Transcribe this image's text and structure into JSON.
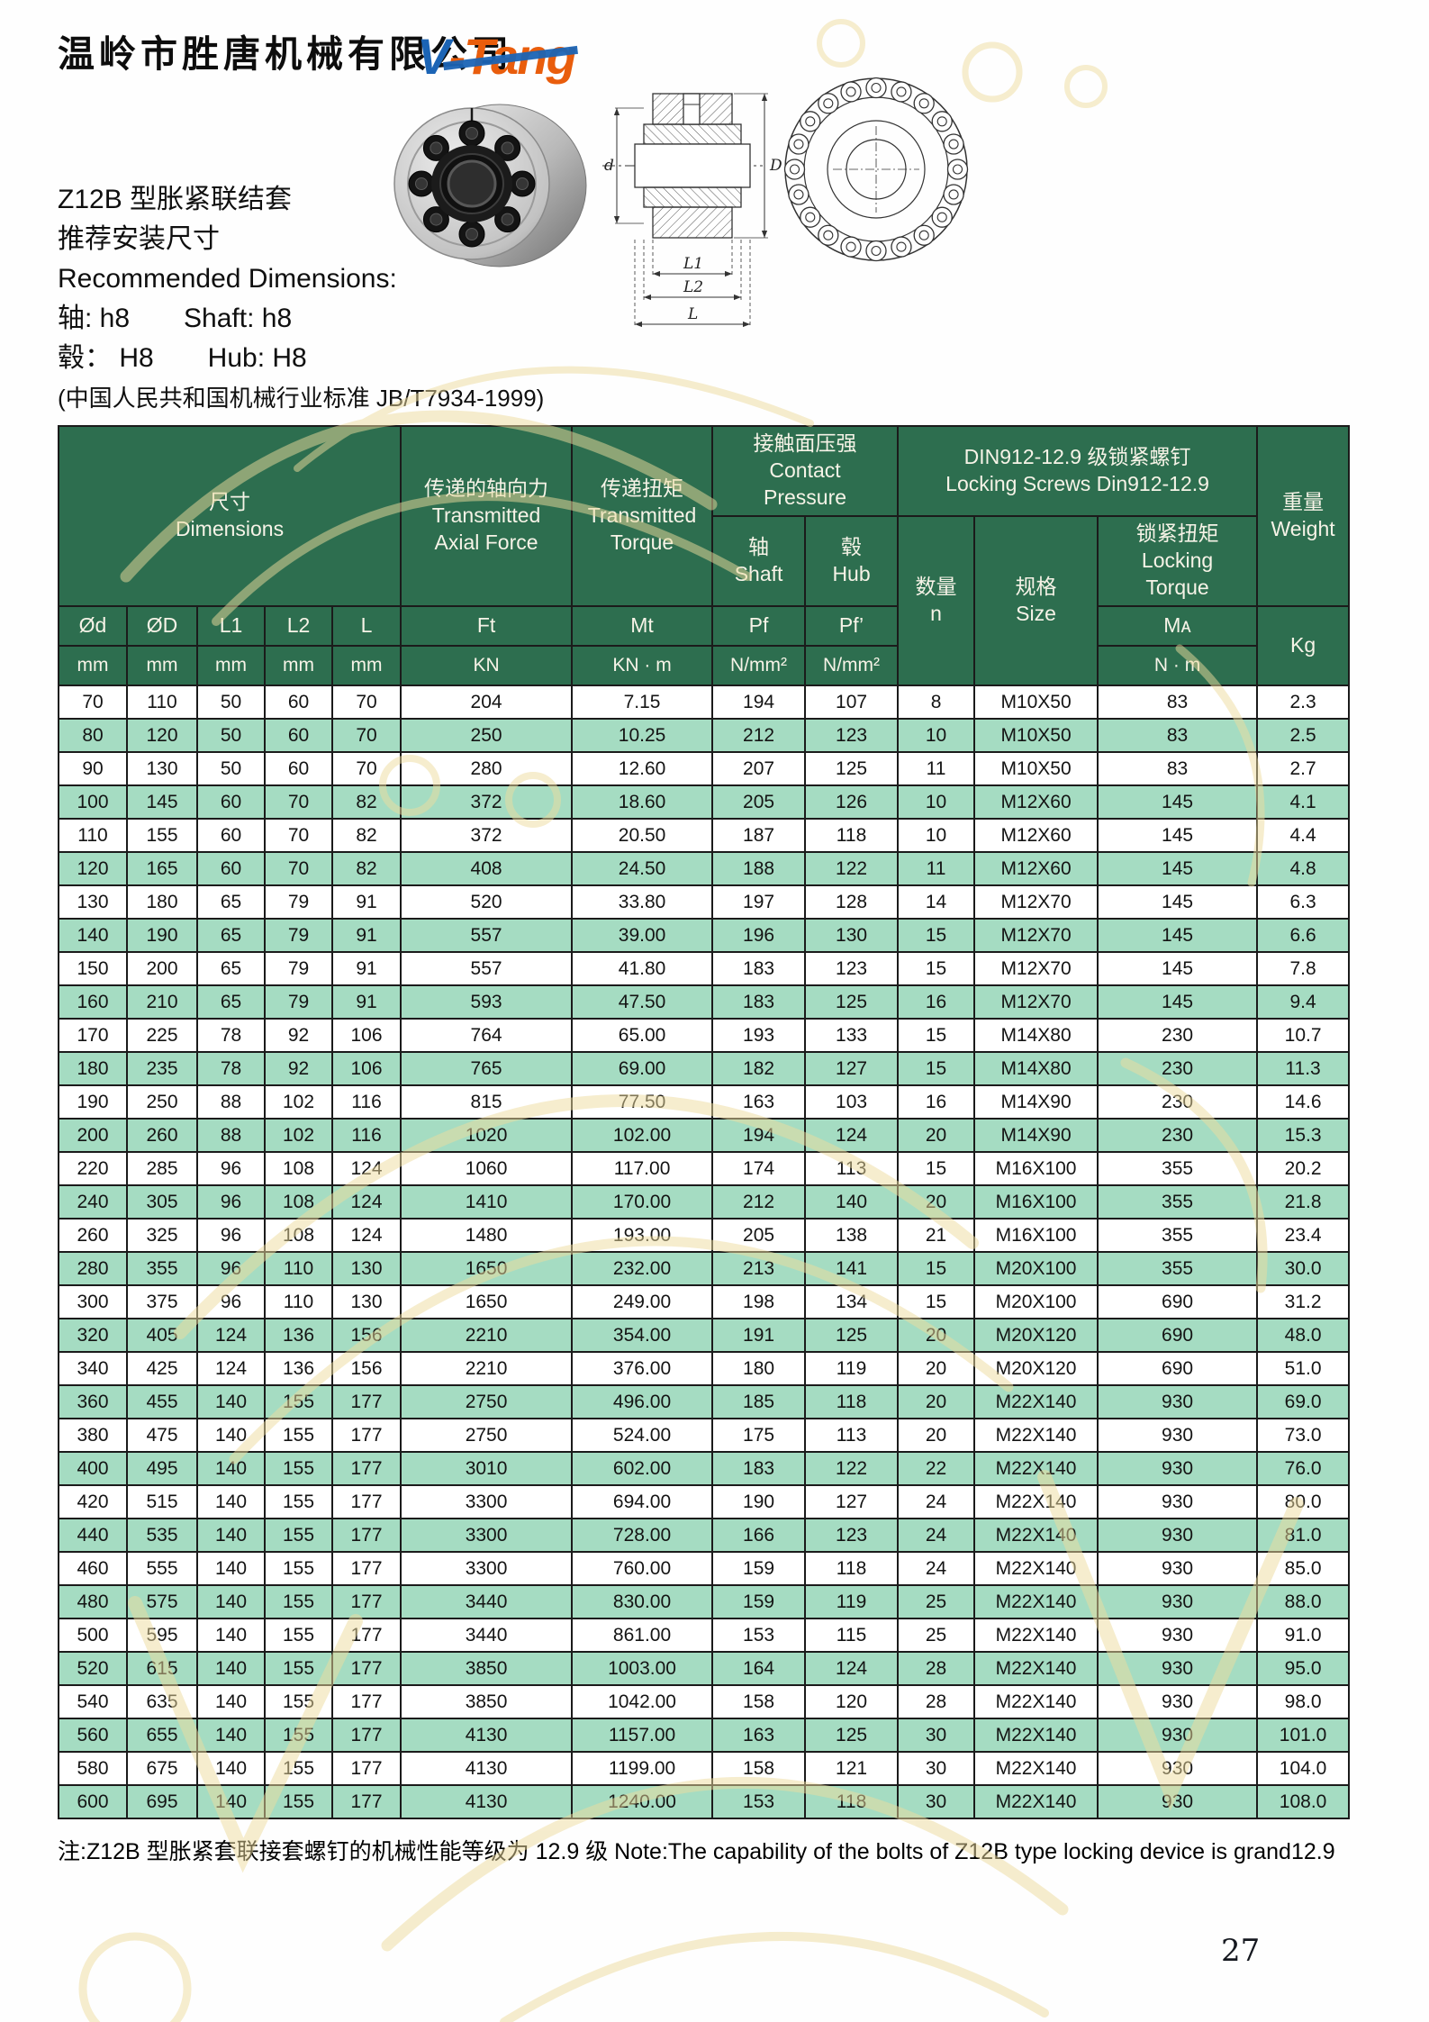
{
  "colors": {
    "header_green": "#2d6e4f",
    "row_green": "#a5dcc2",
    "brand_orange": "#e95d0c",
    "brand_blue": "#1b64b5",
    "watermark_gold": "#eedc9e"
  },
  "header": {
    "company_name": "温岭市胜唐机械有限公司",
    "logo_v": "V",
    "logo_rest": "-Tang"
  },
  "product": {
    "title_cn": "Z12B 型胀紧联结套",
    "subtitle_cn": "推荐安装尺寸",
    "subtitle_en": "Recommended Dimensions:",
    "shaft_line": "轴: h8　　Shaft: h8",
    "hub_line": "毂： H8　　Hub: H8",
    "standard_line": "(中国人民共和国机械行业标准 JB/T7934-1999)"
  },
  "drawing": {
    "labels": {
      "d": "d",
      "D": "D",
      "l1": "L1",
      "l2": "L2",
      "l": "L"
    }
  },
  "table": {
    "group_headers": {
      "dimensions": "尺寸\nDimensions",
      "axial_force": "传递的轴向力\nTransmitted\nAxial Force",
      "torque": "传递扭矩\nTransmitted\nTorque",
      "contact_pressure": "接触面压强\nContact\nPressure",
      "locking_screws": "DIN912-12.9 级锁紧螺钉\nLocking Screws Din912-12.9",
      "weight": "重量\nWeight"
    },
    "sub_headers": {
      "shaft": "轴\nShaft",
      "hub": "毂\nHub",
      "quantity": "数量\nn",
      "size": "规格\nSize",
      "locking_torque": "锁紧扭矩\nLocking\nTorque"
    },
    "symbol_row": [
      "Ød",
      "ØD",
      "L1",
      "L2",
      "L",
      "Ft",
      "Mt",
      "Pf",
      "Pf’",
      "Mᴀ",
      "Kg"
    ],
    "unit_row": [
      "mm",
      "mm",
      "mm",
      "mm",
      "mm",
      "KN",
      "KN · m",
      "N/mm²",
      "N/mm²",
      "N · m"
    ],
    "rows": [
      [
        "70",
        "110",
        "50",
        "60",
        "70",
        "204",
        "7.15",
        "194",
        "107",
        "8",
        "M10X50",
        "83",
        "2.3"
      ],
      [
        "80",
        "120",
        "50",
        "60",
        "70",
        "250",
        "10.25",
        "212",
        "123",
        "10",
        "M10X50",
        "83",
        "2.5"
      ],
      [
        "90",
        "130",
        "50",
        "60",
        "70",
        "280",
        "12.60",
        "207",
        "125",
        "11",
        "M10X50",
        "83",
        "2.7"
      ],
      [
        "100",
        "145",
        "60",
        "70",
        "82",
        "372",
        "18.60",
        "205",
        "126",
        "10",
        "M12X60",
        "145",
        "4.1"
      ],
      [
        "110",
        "155",
        "60",
        "70",
        "82",
        "372",
        "20.50",
        "187",
        "118",
        "10",
        "M12X60",
        "145",
        "4.4"
      ],
      [
        "120",
        "165",
        "60",
        "70",
        "82",
        "408",
        "24.50",
        "188",
        "122",
        "11",
        "M12X60",
        "145",
        "4.8"
      ],
      [
        "130",
        "180",
        "65",
        "79",
        "91",
        "520",
        "33.80",
        "197",
        "128",
        "14",
        "M12X70",
        "145",
        "6.3"
      ],
      [
        "140",
        "190",
        "65",
        "79",
        "91",
        "557",
        "39.00",
        "196",
        "130",
        "15",
        "M12X70",
        "145",
        "6.6"
      ],
      [
        "150",
        "200",
        "65",
        "79",
        "91",
        "557",
        "41.80",
        "183",
        "123",
        "15",
        "M12X70",
        "145",
        "7.8"
      ],
      [
        "160",
        "210",
        "65",
        "79",
        "91",
        "593",
        "47.50",
        "183",
        "125",
        "16",
        "M12X70",
        "145",
        "9.4"
      ],
      [
        "170",
        "225",
        "78",
        "92",
        "106",
        "764",
        "65.00",
        "193",
        "133",
        "15",
        "M14X80",
        "230",
        "10.7"
      ],
      [
        "180",
        "235",
        "78",
        "92",
        "106",
        "765",
        "69.00",
        "182",
        "127",
        "15",
        "M14X80",
        "230",
        "11.3"
      ],
      [
        "190",
        "250",
        "88",
        "102",
        "116",
        "815",
        "77.50",
        "163",
        "103",
        "16",
        "M14X90",
        "230",
        "14.6"
      ],
      [
        "200",
        "260",
        "88",
        "102",
        "116",
        "1020",
        "102.00",
        "194",
        "124",
        "20",
        "M14X90",
        "230",
        "15.3"
      ],
      [
        "220",
        "285",
        "96",
        "108",
        "124",
        "1060",
        "117.00",
        "174",
        "113",
        "15",
        "M16X100",
        "355",
        "20.2"
      ],
      [
        "240",
        "305",
        "96",
        "108",
        "124",
        "1410",
        "170.00",
        "212",
        "140",
        "20",
        "M16X100",
        "355",
        "21.8"
      ],
      [
        "260",
        "325",
        "96",
        "108",
        "124",
        "1480",
        "193.00",
        "205",
        "138",
        "21",
        "M16X100",
        "355",
        "23.4"
      ],
      [
        "280",
        "355",
        "96",
        "110",
        "130",
        "1650",
        "232.00",
        "213",
        "141",
        "15",
        "M20X100",
        "355",
        "30.0"
      ],
      [
        "300",
        "375",
        "96",
        "110",
        "130",
        "1650",
        "249.00",
        "198",
        "134",
        "15",
        "M20X100",
        "690",
        "31.2"
      ],
      [
        "320",
        "405",
        "124",
        "136",
        "156",
        "2210",
        "354.00",
        "191",
        "125",
        "20",
        "M20X120",
        "690",
        "48.0"
      ],
      [
        "340",
        "425",
        "124",
        "136",
        "156",
        "2210",
        "376.00",
        "180",
        "119",
        "20",
        "M20X120",
        "690",
        "51.0"
      ],
      [
        "360",
        "455",
        "140",
        "155",
        "177",
        "2750",
        "496.00",
        "185",
        "118",
        "20",
        "M22X140",
        "930",
        "69.0"
      ],
      [
        "380",
        "475",
        "140",
        "155",
        "177",
        "2750",
        "524.00",
        "175",
        "113",
        "20",
        "M22X140",
        "930",
        "73.0"
      ],
      [
        "400",
        "495",
        "140",
        "155",
        "177",
        "3010",
        "602.00",
        "183",
        "122",
        "22",
        "M22X140",
        "930",
        "76.0"
      ],
      [
        "420",
        "515",
        "140",
        "155",
        "177",
        "3300",
        "694.00",
        "190",
        "127",
        "24",
        "M22X140",
        "930",
        "80.0"
      ],
      [
        "440",
        "535",
        "140",
        "155",
        "177",
        "3300",
        "728.00",
        "166",
        "123",
        "24",
        "M22X140",
        "930",
        "81.0"
      ],
      [
        "460",
        "555",
        "140",
        "155",
        "177",
        "3300",
        "760.00",
        "159",
        "118",
        "24",
        "M22X140",
        "930",
        "85.0"
      ],
      [
        "480",
        "575",
        "140",
        "155",
        "177",
        "3440",
        "830.00",
        "159",
        "119",
        "25",
        "M22X140",
        "930",
        "88.0"
      ],
      [
        "500",
        "595",
        "140",
        "155",
        "177",
        "3440",
        "861.00",
        "153",
        "115",
        "25",
        "M22X140",
        "930",
        "91.0"
      ],
      [
        "520",
        "615",
        "140",
        "155",
        "177",
        "3850",
        "1003.00",
        "164",
        "124",
        "28",
        "M22X140",
        "930",
        "95.0"
      ],
      [
        "540",
        "635",
        "140",
        "155",
        "177",
        "3850",
        "1042.00",
        "158",
        "120",
        "28",
        "M22X140",
        "930",
        "98.0"
      ],
      [
        "560",
        "655",
        "140",
        "155",
        "177",
        "4130",
        "1157.00",
        "163",
        "125",
        "30",
        "M22X140",
        "930",
        "101.0"
      ],
      [
        "580",
        "675",
        "140",
        "155",
        "177",
        "4130",
        "1199.00",
        "158",
        "121",
        "30",
        "M22X140",
        "930",
        "104.0"
      ],
      [
        "600",
        "695",
        "140",
        "155",
        "177",
        "4130",
        "1240.00",
        "153",
        "118",
        "30",
        "M22X140",
        "930",
        "108.0"
      ]
    ]
  },
  "note": "注:Z12B 型胀紧套联接套螺钉的机械性能等级为 12.9 级 Note:The capability of the bolts of Z12B type locking device is grand12.9",
  "page": {
    "number": "27"
  }
}
